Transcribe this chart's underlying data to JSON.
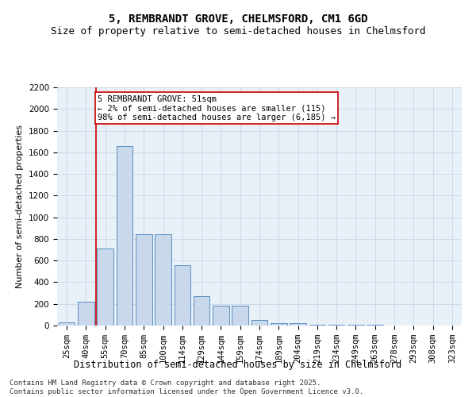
{
  "title1": "5, REMBRANDT GROVE, CHELMSFORD, CM1 6GD",
  "title2": "Size of property relative to semi-detached houses in Chelmsford",
  "xlabel": "Distribution of semi-detached houses by size in Chelmsford",
  "ylabel": "Number of semi-detached properties",
  "categories": [
    "25sqm",
    "40sqm",
    "55sqm",
    "70sqm",
    "85sqm",
    "100sqm",
    "114sqm",
    "129sqm",
    "144sqm",
    "159sqm",
    "174sqm",
    "189sqm",
    "204sqm",
    "219sqm",
    "234sqm",
    "249sqm",
    "263sqm",
    "278sqm",
    "293sqm",
    "308sqm",
    "323sqm"
  ],
  "bar_values": [
    30,
    220,
    710,
    1660,
    840,
    840,
    560,
    270,
    180,
    180,
    55,
    25,
    25,
    10,
    10,
    5,
    5,
    2,
    2,
    1,
    1
  ],
  "bar_color": "#c9d9eb",
  "bar_edge_color": "#5a8fc0",
  "vline_x": 1.5,
  "vline_color": "#cc0000",
  "annotation_text": "5 REMBRANDT GROVE: 51sqm\n← 2% of semi-detached houses are smaller (115)\n98% of semi-detached houses are larger (6,185) →",
  "annotation_box_color": "#ffffff",
  "annotation_box_edge": "#cc0000",
  "ylim": [
    0,
    2200
  ],
  "yticks": [
    0,
    200,
    400,
    600,
    800,
    1000,
    1200,
    1400,
    1600,
    1800,
    2000,
    2200
  ],
  "grid_color": "#c8d8e8",
  "background_color": "#e8f0f8",
  "footer": "Contains HM Land Registry data © Crown copyright and database right 2025.\nContains public sector information licensed under the Open Government Licence v3.0.",
  "title1_fontsize": 10,
  "title2_fontsize": 9,
  "xlabel_fontsize": 8.5,
  "ylabel_fontsize": 8,
  "tick_fontsize": 7.5,
  "annotation_fontsize": 7.5,
  "footer_fontsize": 6.5
}
